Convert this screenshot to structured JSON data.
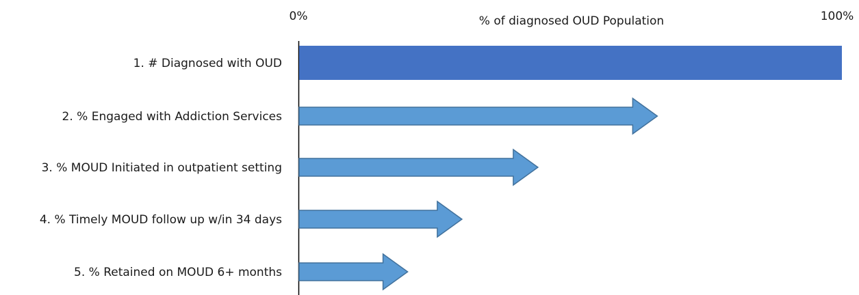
{
  "chart_data": {
    "type": "bar",
    "title": "% of diagnosed OUD Population",
    "xlabel": "% of diagnosed OUD Population",
    "ylabel": "",
    "xlim": [
      0,
      100
    ],
    "tick_labels": [
      "0%",
      "100%"
    ],
    "grid": false,
    "categories": [
      "1. # Diagnosed with OUD",
      "2. % Engaged with Addiction Services",
      "3. % MOUD Initiated in outpatient setting",
      "4. % Timely MOUD follow up w/in 34 days",
      "5. % Retained on MOUD 6+ months"
    ],
    "values": [
      100,
      66,
      44,
      30,
      20
    ],
    "mark_shapes": [
      "bar",
      "arrow",
      "arrow",
      "arrow",
      "arrow"
    ],
    "colors": {
      "primary_bar": "#4472C4",
      "arrow_fill": "#5B9BD5",
      "arrow_stroke": "#41719C",
      "axis": "#000000"
    }
  }
}
